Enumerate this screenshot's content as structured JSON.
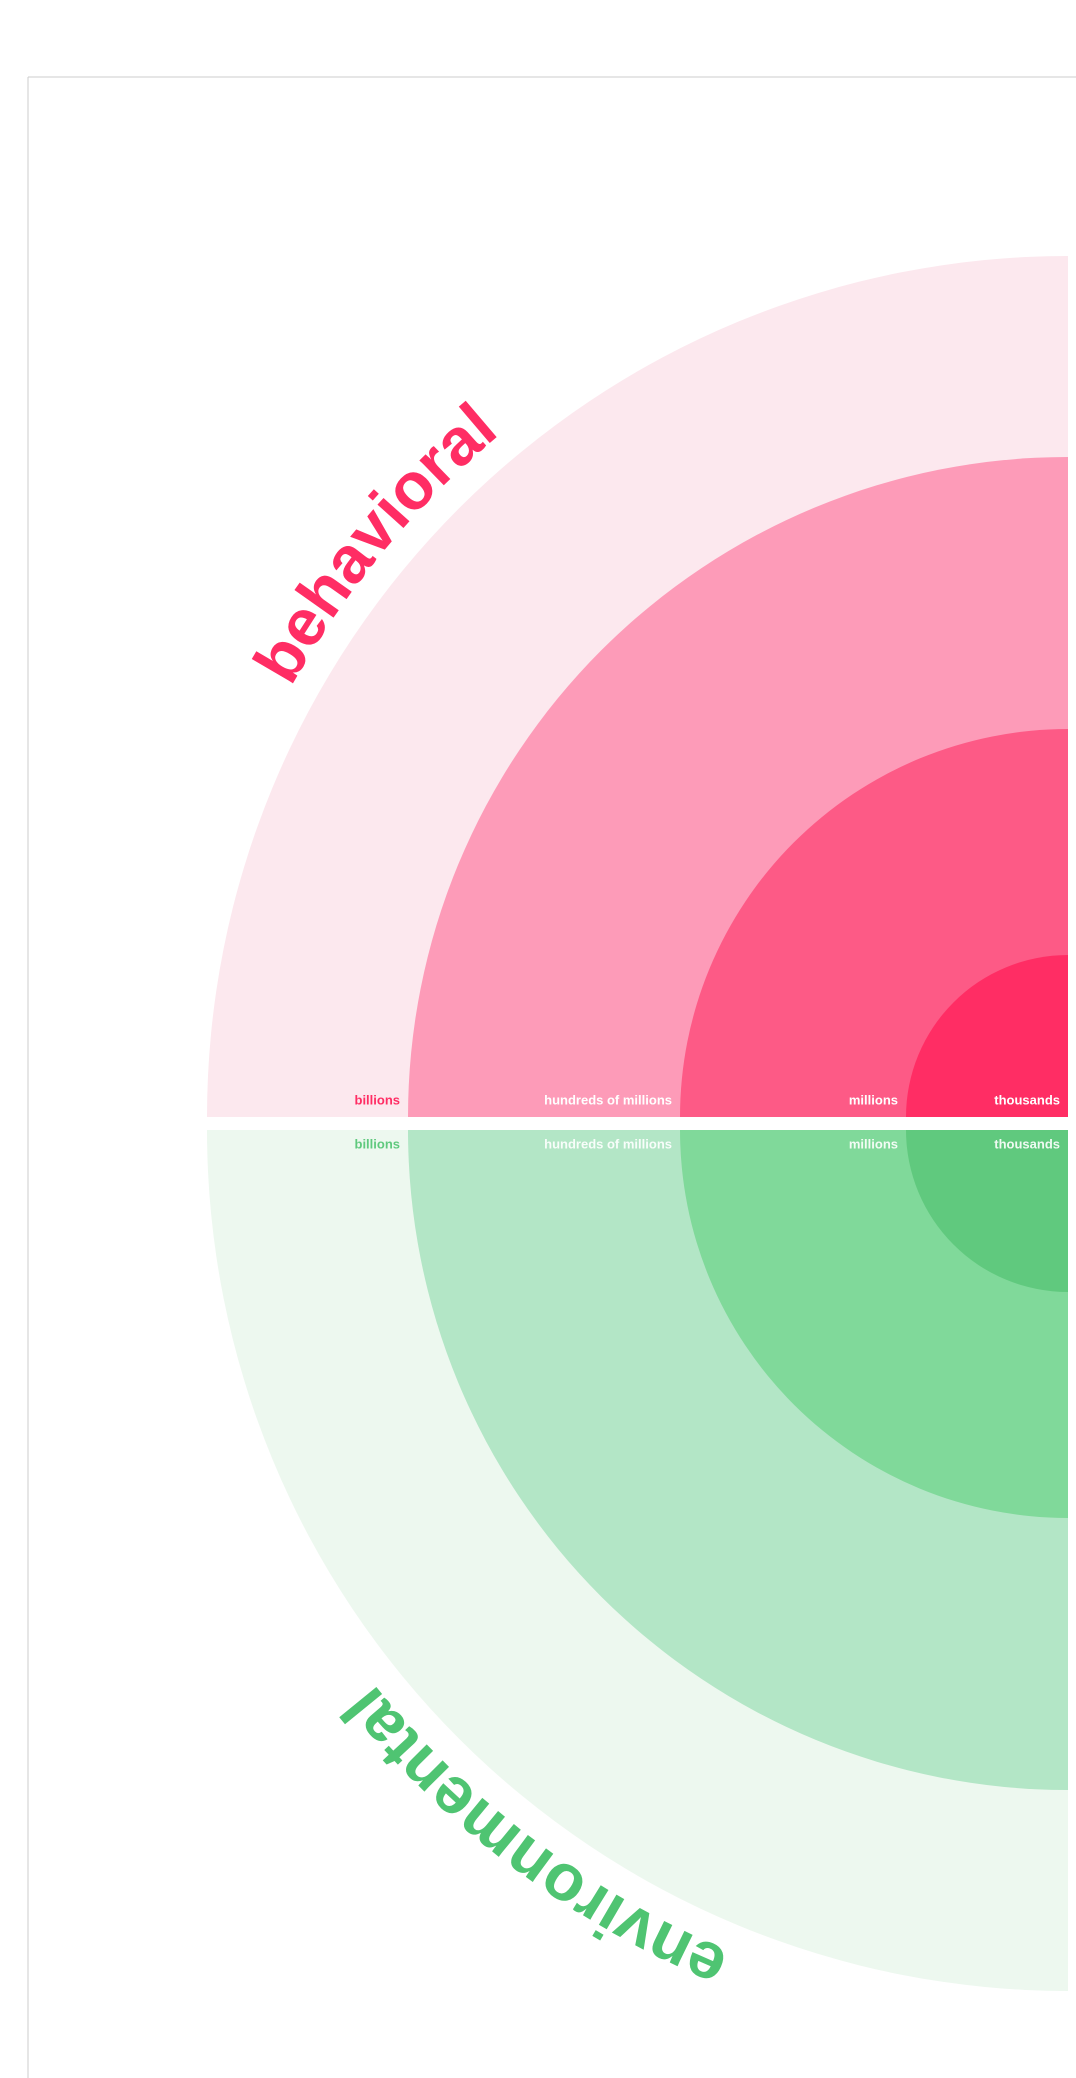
{
  "behavioral": {
    "label": "behavioral",
    "rings": [
      "billions",
      "hundreds of millions",
      "millions",
      "thousands"
    ]
  },
  "environmental": {
    "label": "environmental",
    "rings": [
      "billions",
      "hundreds of millions",
      "millions",
      "thousands"
    ]
  }
}
